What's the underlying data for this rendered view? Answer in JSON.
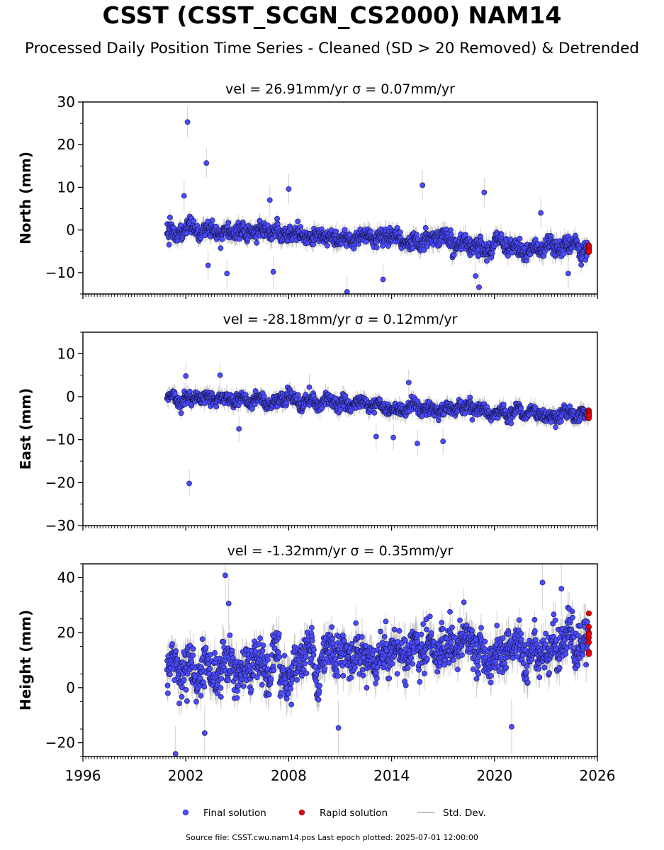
{
  "header": {
    "title": "CSST (CSST_SCGN_CS2000) NAM14",
    "subtitle": "Processed Daily Position Time Series - Cleaned (SD > 20 Removed) & Detrended"
  },
  "footer": {
    "note": "Source file: CSST.cwu.nam14.pos  Last epoch plotted: 2025-07-01 12:00:00"
  },
  "colors": {
    "final": "#4b4bff",
    "rapid": "#e8000b",
    "std_dev": "#aaaaaa"
  },
  "chart_data": [
    {
      "type": "scatter",
      "panel": "north",
      "title": "vel = 26.91mm/yr   σ = 0.07mm/yr",
      "xlabel": "",
      "ylabel": "North (mm)",
      "xlim": [
        1996,
        2026
      ],
      "ylim": [
        -15,
        30
      ],
      "yticks": [
        -10,
        0,
        10,
        20,
        30
      ],
      "grid": false,
      "trend": {
        "start_year": 2000.9,
        "end_year": 2025.5,
        "start_value": 0.0,
        "end_value": -4.5,
        "scatter_sd": 1.6,
        "sd_mean": 1.6
      },
      "outliers": [
        {
          "x": 2002.1,
          "y": 25.3
        },
        {
          "x": 2003.2,
          "y": 15.7
        },
        {
          "x": 2001.9,
          "y": 8.0
        },
        {
          "x": 2006.9,
          "y": 7.0
        },
        {
          "x": 2008.0,
          "y": 9.6
        },
        {
          "x": 2015.8,
          "y": 10.5
        },
        {
          "x": 2019.4,
          "y": 8.8
        },
        {
          "x": 2011.4,
          "y": -14.5
        },
        {
          "x": 2019.1,
          "y": -13.4
        },
        {
          "x": 2013.5,
          "y": -11.6
        },
        {
          "x": 2004.4,
          "y": -10.2
        },
        {
          "x": 2018.9,
          "y": -10.8
        },
        {
          "x": 2022.7,
          "y": 4.0
        },
        {
          "x": 2024.3,
          "y": -10.2
        },
        {
          "x": 2003.3,
          "y": -8.3
        },
        {
          "x": 2007.1,
          "y": -9.8
        }
      ],
      "rapid": {
        "x": 2025.5,
        "values": [
          -3.6,
          -4.0,
          -4.4,
          -4.8,
          -5.2,
          -3.9,
          -4.6,
          -5.0
        ]
      },
      "legend": "bottom-center"
    },
    {
      "type": "scatter",
      "panel": "east",
      "title": "vel = -28.18mm/yr   σ = 0.12mm/yr",
      "xlabel": "",
      "ylabel": "East (mm)",
      "xlim": [
        1996,
        2026
      ],
      "ylim": [
        -30,
        15
      ],
      "yticks": [
        -30,
        -20,
        -10,
        0,
        10
      ],
      "grid": false,
      "trend": {
        "start_year": 2000.9,
        "end_year": 2025.5,
        "start_value": 0.0,
        "end_value": -4.5,
        "scatter_sd": 1.3,
        "sd_mean": 1.4
      },
      "outliers": [
        {
          "x": 2002.2,
          "y": -20.2
        },
        {
          "x": 2004.0,
          "y": 5.0
        },
        {
          "x": 2002.0,
          "y": 4.8
        },
        {
          "x": 2015.0,
          "y": 3.3
        },
        {
          "x": 2005.1,
          "y": -7.5
        },
        {
          "x": 2015.5,
          "y": -10.9
        },
        {
          "x": 2017.0,
          "y": -10.4
        },
        {
          "x": 2009.2,
          "y": 2.2
        },
        {
          "x": 2013.1,
          "y": -9.3
        },
        {
          "x": 2014.1,
          "y": -9.5
        }
      ],
      "rapid": {
        "x": 2025.5,
        "values": [
          -3.2,
          -3.7,
          -4.1,
          -4.6,
          -5.0,
          -4.3
        ]
      }
    },
    {
      "type": "scatter",
      "panel": "height",
      "title": "vel = -1.32mm/yr   σ = 0.35mm/yr",
      "xlabel": "",
      "ylabel": "Height (mm)",
      "xlim": [
        1996,
        2026
      ],
      "xticks": [
        1996,
        2002,
        2008,
        2014,
        2020,
        2026
      ],
      "xticklabels": [
        "1996",
        "2002",
        "2008",
        "2014",
        "2020",
        "2026"
      ],
      "ylim": [
        -25,
        45
      ],
      "yticks": [
        -20,
        0,
        20,
        40
      ],
      "grid": false,
      "trend": {
        "start_year": 2000.9,
        "end_year": 2025.5,
        "start_value": 6.0,
        "end_value": 17.0,
        "scatter_sd": 6.5,
        "sd_mean": 4.5
      },
      "outliers": [
        {
          "x": 2004.3,
          "y": 40.8
        },
        {
          "x": 2022.8,
          "y": 38.2
        },
        {
          "x": 2001.4,
          "y": -24.0
        },
        {
          "x": 2003.1,
          "y": -16.5
        },
        {
          "x": 2021.0,
          "y": -14.2
        },
        {
          "x": 2010.9,
          "y": -14.6
        },
        {
          "x": 2004.5,
          "y": 30.6
        },
        {
          "x": 2023.9,
          "y": 36.0
        }
      ],
      "rapid": {
        "x": 2025.5,
        "values": [
          27.0,
          22.1,
          20.0,
          18.2,
          16.5,
          13.0,
          12.2,
          19.4
        ]
      }
    }
  ],
  "legend": {
    "items": [
      {
        "label": "Final solution",
        "kind": "dot",
        "color_key": "final"
      },
      {
        "label": "Rapid solution",
        "kind": "dot",
        "color_key": "rapid"
      },
      {
        "label": "Std. Dev.",
        "kind": "line",
        "color_key": "std_dev"
      }
    ]
  }
}
